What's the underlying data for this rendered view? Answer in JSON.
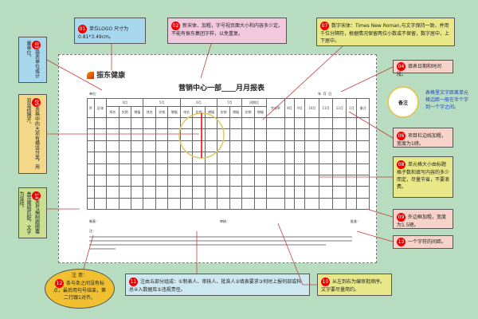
{
  "logo": {
    "text": "振东健康"
  },
  "document": {
    "title": "营销中心一部____月月报表",
    "unit_label": "单位：    ",
    "date_label": "年  月  日",
    "prepared_by": "制表：",
    "reviewed_by": "审核：",
    "approved_by": "批准：",
    "note_prefix": "注："
  },
  "table": {
    "header_row1": [
      "序",
      "区域",
      "4月",
      "5月",
      "6月",
      "7月",
      "同期比",
      "完成率",
      "8月",
      "9月",
      "10月",
      "11月",
      "12月",
      "1月",
      "备注"
    ],
    "sub_a": [
      "排名",
      "实销",
      "增幅"
    ],
    "sub_b": [
      "实销",
      "增幅"
    ]
  },
  "callouts": [
    {
      "num": "01",
      "text": "单位LOGO 尺寸为0.81*3.49cm。"
    },
    {
      "num": "02",
      "text": "新宋体、加粗，字号视页面大小和内容多少定。不能有振东集团字样，以免重复。"
    },
    {
      "num": "03",
      "text": "填表单位或计量单位。"
    },
    {
      "num": "04",
      "text": "填表日期和时间段。"
    },
    {
      "num": "05",
      "text": "表格中的大项有横竖分类，用双竖线隔开。"
    },
    {
      "num": "06",
      "text": "项目栏边线加粗，宽度为1磅。"
    },
    {
      "num": "07",
      "text": "数字宋体：Times New Roman,与文字保持一致，并用千位分隔符，根据情况保留两位小数或不保留，数字居中，上下居中。"
    },
    {
      "num": "08",
      "text": "单元格大小由标题格子数和填写内容的多少而定，尽量节省，不要浪费。"
    },
    {
      "num": "09",
      "text": "外边框加粗，宽度为1.5磅。"
    },
    {
      "num": "10",
      "text": "从左到右为编审批顺序。文字要尽量简约。"
    },
    {
      "num": "11",
      "text": "注由五部分组成：①制表人、审核人、批准人②填表要求③何时上报何部或科总④入数据库⑤违规责任。"
    },
    {
      "num": "12",
      "title": "注 意：",
      "text": "条与条之间没有标点，最后用句号结束，第二行跟1对齐。"
    },
    {
      "num": "13",
      "text": "一个字符的间距。"
    },
    {
      "num": "14",
      "text": "表号编制跟随覆盖范围相匹配，文字为竖排。"
    }
  ],
  "magnifier": {
    "label": "备注",
    "text": "表格里文字距离单元格边距一般在半个字到一个字之间。"
  },
  "colors": {
    "background": "#b8dcc0",
    "blue_box": "#a8d8ee",
    "pink_box": "#f2c8dc",
    "yellow_box": "#e8e888",
    "salmon_box": "#f6d2c8",
    "orange_box": "#f4d88a",
    "ellipse": "#f0c030",
    "badge": "#e00000"
  }
}
